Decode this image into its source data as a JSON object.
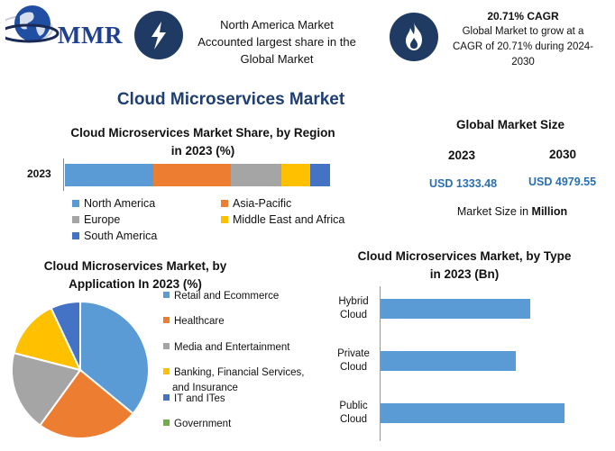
{
  "header": {
    "logo_text": "MMR",
    "info1": {
      "icon": "lightning-icon",
      "lines": [
        "North America Market",
        "Accounted largest share in the",
        "Global Market"
      ]
    },
    "info2": {
      "icon": "flame-icon",
      "title": "20.71% CAGR",
      "lines": [
        "Global Market to grow at a",
        "CAGR of 20.71% during 2024-",
        "2030"
      ]
    },
    "icon_bg": "#1f3a63"
  },
  "main_title": "Cloud Microservices Market",
  "global_market_size": {
    "title": "Global Market Size",
    "year_a": "2023",
    "year_b": "2030",
    "value_a": "USD 1333.48",
    "value_b": "USD 4979.55",
    "unit_prefix": "Market Size in ",
    "unit_bold": "Million"
  },
  "chart_data": [
    {
      "type": "bar",
      "orientation": "horizontal-stacked",
      "title_lines": [
        "Cloud Microservices Market Share, by Region",
        "in 2023 (%)"
      ],
      "categories": [
        "2023"
      ],
      "series": [
        {
          "name": "North America",
          "values": [
            33.5
          ],
          "color": "#5b9bd5"
        },
        {
          "name": "Asia-Pacific",
          "values": [
            29
          ],
          "color": "#ed7d31"
        },
        {
          "name": "Europe",
          "values": [
            19
          ],
          "color": "#a5a5a5"
        },
        {
          "name": "Middle East and Africa",
          "values": [
            11
          ],
          "color": "#ffc000"
        },
        {
          "name": "South America",
          "values": [
            7.5
          ],
          "color": "#4472c4"
        }
      ]
    },
    {
      "type": "pie",
      "title_lines": [
        "Cloud Microservices Market, by",
        "Application In 2023 (%)"
      ],
      "slices": [
        {
          "name": "Retail and Ecommerce",
          "value": 36,
          "color": "#5b9bd5"
        },
        {
          "name": "Healthcare",
          "value": 24,
          "color": "#ed7d31"
        },
        {
          "name": "Media and Entertainment",
          "value": 19,
          "color": "#a5a5a5"
        },
        {
          "name": "Banking, Financial Services, and Insurance",
          "value": 14,
          "color": "#ffc000"
        },
        {
          "name": "IT and ITes",
          "value": 7,
          "color": "#4472c4"
        },
        {
          "name": "Government",
          "value": 0,
          "color": "#70ad47"
        }
      ],
      "legend_labels": [
        "Retail and Ecommerce",
        "Healthcare",
        "Media and Entertainment",
        "Banking, Financial Services,",
        "and Insurance",
        "IT and ITes",
        "Government"
      ]
    },
    {
      "type": "bar",
      "orientation": "horizontal",
      "title_lines": [
        "Cloud Microservices Market, by Type",
        "in 2023 (Bn)"
      ],
      "categories": [
        [
          "Hybrid",
          "Cloud"
        ],
        [
          "Private",
          "Cloud"
        ],
        [
          "Public",
          "Cloud"
        ]
      ],
      "values": [
        0.43,
        0.39,
        0.53
      ],
      "xlim": [
        0,
        0.55
      ],
      "color": "#5b9bd5"
    }
  ]
}
